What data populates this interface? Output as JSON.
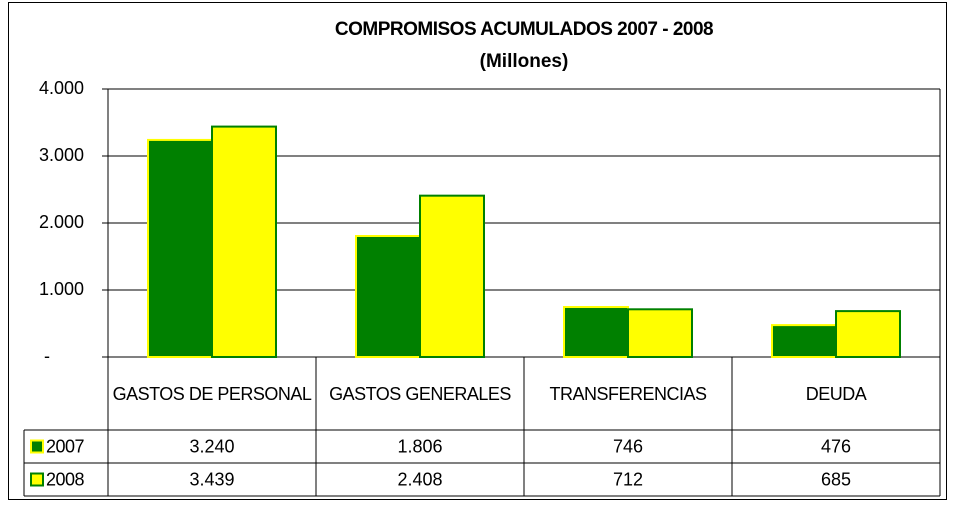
{
  "chart_data": {
    "type": "bar",
    "title": "COMPROMISOS ACUMULADOS 2007 - 2008",
    "subtitle": "(Millones)",
    "categories": [
      "GASTOS DE PERSONAL",
      "GASTOS GENERALES",
      "TRANSFERENCIAS",
      "DEUDA"
    ],
    "series": [
      {
        "name": "2007",
        "color": "#008000",
        "border": "#ffff00",
        "values": [
          3240,
          1806,
          746,
          476
        ],
        "value_labels": [
          "3.240",
          "1.806",
          "746",
          "476"
        ]
      },
      {
        "name": "2008",
        "color": "#ffff00",
        "border": "#008000",
        "values": [
          3439,
          2408,
          712,
          685
        ],
        "value_labels": [
          "3.439",
          "2.408",
          "712",
          "685"
        ]
      }
    ],
    "ylim": [
      0,
      4000
    ],
    "yticks": [
      {
        "value": 0,
        "label": "-"
      },
      {
        "value": 1000,
        "label": "1.000"
      },
      {
        "value": 2000,
        "label": "2.000"
      },
      {
        "value": 3000,
        "label": "3.000"
      },
      {
        "value": 4000,
        "label": "4.000"
      }
    ],
    "grid": true
  }
}
